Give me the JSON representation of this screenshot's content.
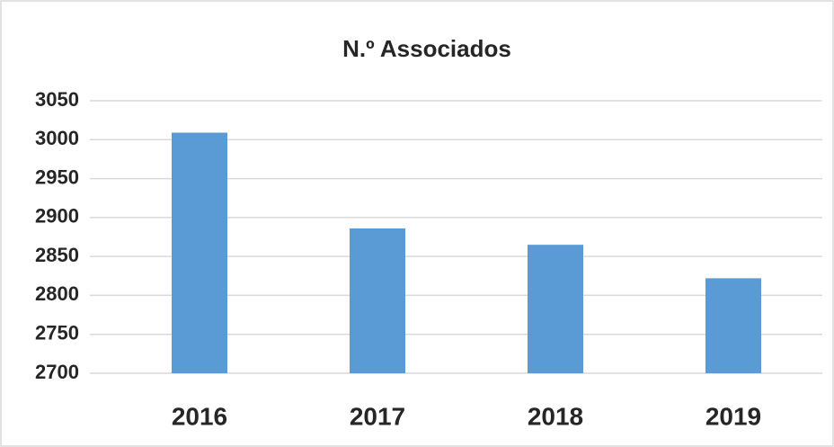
{
  "chart_data": {
    "type": "bar",
    "title": "N.º Associados",
    "categories": [
      "2016",
      "2017",
      "2018",
      "2019"
    ],
    "values": [
      3009,
      2886,
      2865,
      2822
    ],
    "color": "#5b9bd5",
    "ylim": [
      2700,
      3050
    ],
    "yticks": [
      2700,
      2750,
      2800,
      2850,
      2900,
      2950,
      3000,
      3050
    ],
    "grid": true
  }
}
